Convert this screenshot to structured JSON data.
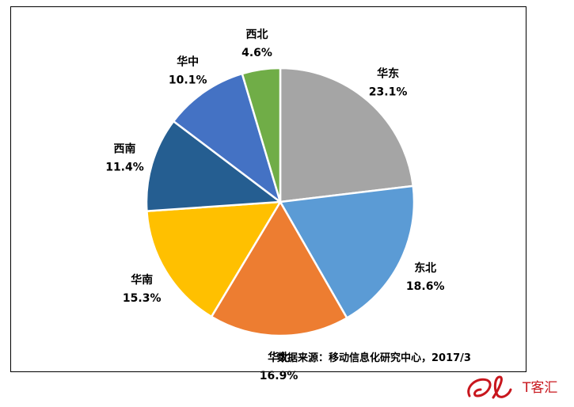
{
  "chart_data": {
    "type": "pie",
    "title": "",
    "slices": [
      {
        "label": "华东",
        "value": 23.1,
        "display": "23.1%",
        "color": "#A5A5A5"
      },
      {
        "label": "东北",
        "value": 18.6,
        "display": "18.6%",
        "color": "#5B9BD5"
      },
      {
        "label": "华北",
        "value": 16.9,
        "display": "16.9%",
        "color": "#ED7D31"
      },
      {
        "label": "华南",
        "value": 15.3,
        "display": "15.3%",
        "color": "#FFC000"
      },
      {
        "label": "西南",
        "value": 11.4,
        "display": "11.4%",
        "color": "#255E91"
      },
      {
        "label": "华中",
        "value": 10.1,
        "display": "10.1%",
        "color": "#4472C4"
      },
      {
        "label": "西北",
        "value": 4.6,
        "display": "4.6%",
        "color": "#70AD47"
      }
    ],
    "start_angle_deg": 0,
    "direction": "clockwise",
    "legend": "none"
  },
  "source_note": "数据来源：移动信息化研究中心，2017/3",
  "watermark": {
    "text": "T客汇",
    "logo_color": "#c8161d"
  }
}
